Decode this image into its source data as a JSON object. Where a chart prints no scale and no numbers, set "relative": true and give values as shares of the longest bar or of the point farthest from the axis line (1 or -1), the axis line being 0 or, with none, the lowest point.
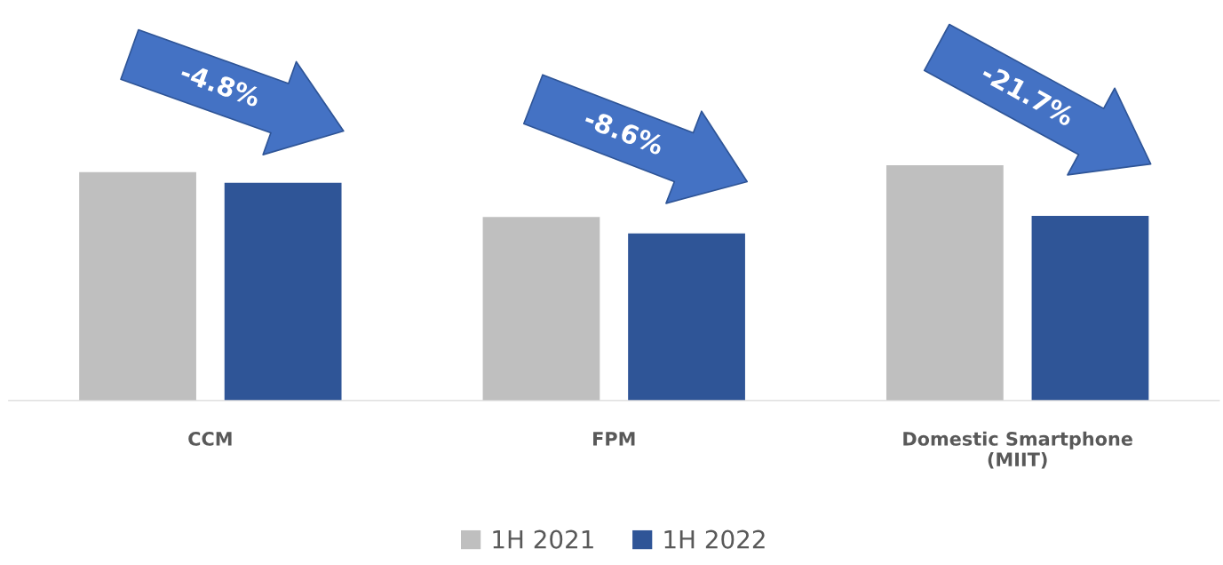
{
  "chart_data": {
    "type": "bar",
    "relative": true,
    "categories": [
      "CCM",
      "FPM",
      "Domestic Smartphone\n(MIIT)"
    ],
    "series": [
      {
        "name": "1H 2021",
        "color": "#bfbfbf",
        "values": [
          0.97,
          0.78,
          1
        ]
      },
      {
        "name": "1H 2022",
        "color": "#2f5597",
        "values": [
          0.925,
          0.71,
          0.785
        ]
      }
    ],
    "annotations": [
      "-4.8%",
      "-8.6%",
      "-21.7%"
    ],
    "legend": "bottom",
    "grid": false
  }
}
